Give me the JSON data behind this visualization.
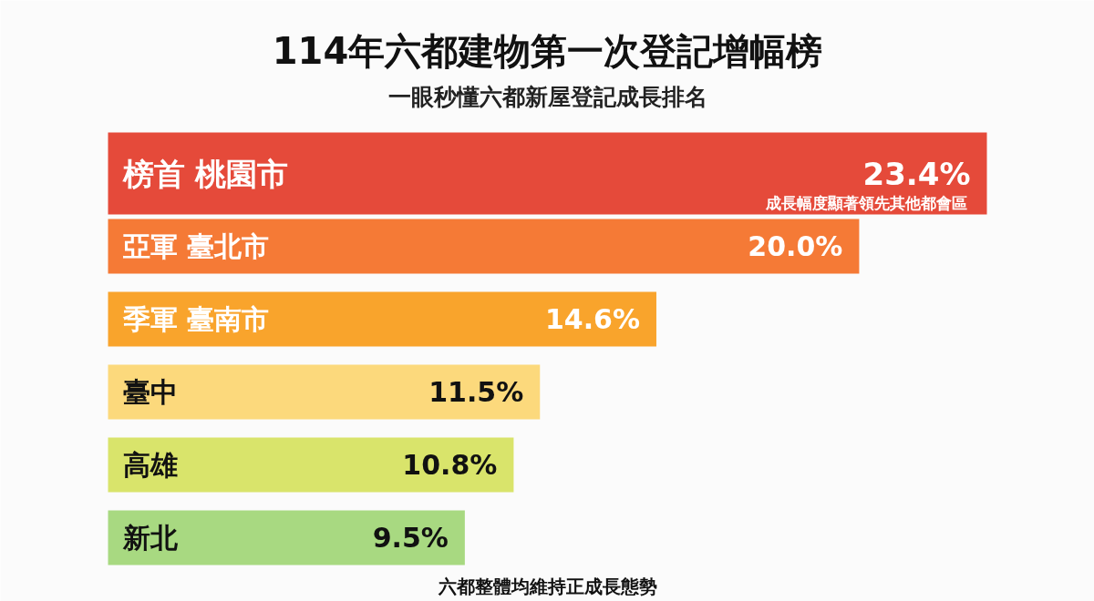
{
  "chart_data": {
    "type": "bar",
    "orientation": "horizontal",
    "title": "114年六都建物第一次登記增幅榜",
    "subtitle": "一眼秒懂六都新屋登記成長排名",
    "categories": [
      "榜首 桃園市",
      "亞軍 臺北市",
      "季軍 臺南市",
      "臺中",
      "高雄",
      "新北"
    ],
    "values": [
      23.4,
      20.0,
      14.6,
      11.5,
      10.8,
      9.5
    ],
    "value_labels": [
      "23.4%",
      "20.0%",
      "14.6%",
      "11.5%",
      "10.8%",
      "9.5%"
    ],
    "colors": [
      "#e54a3a",
      "#f57a36",
      "#f9a42c",
      "#fcd97c",
      "#d9e46b",
      "#a8d981"
    ],
    "annotations": [
      "成長幅度顯著領先其他都會區",
      "六都整體均維持正成長態勢"
    ]
  }
}
